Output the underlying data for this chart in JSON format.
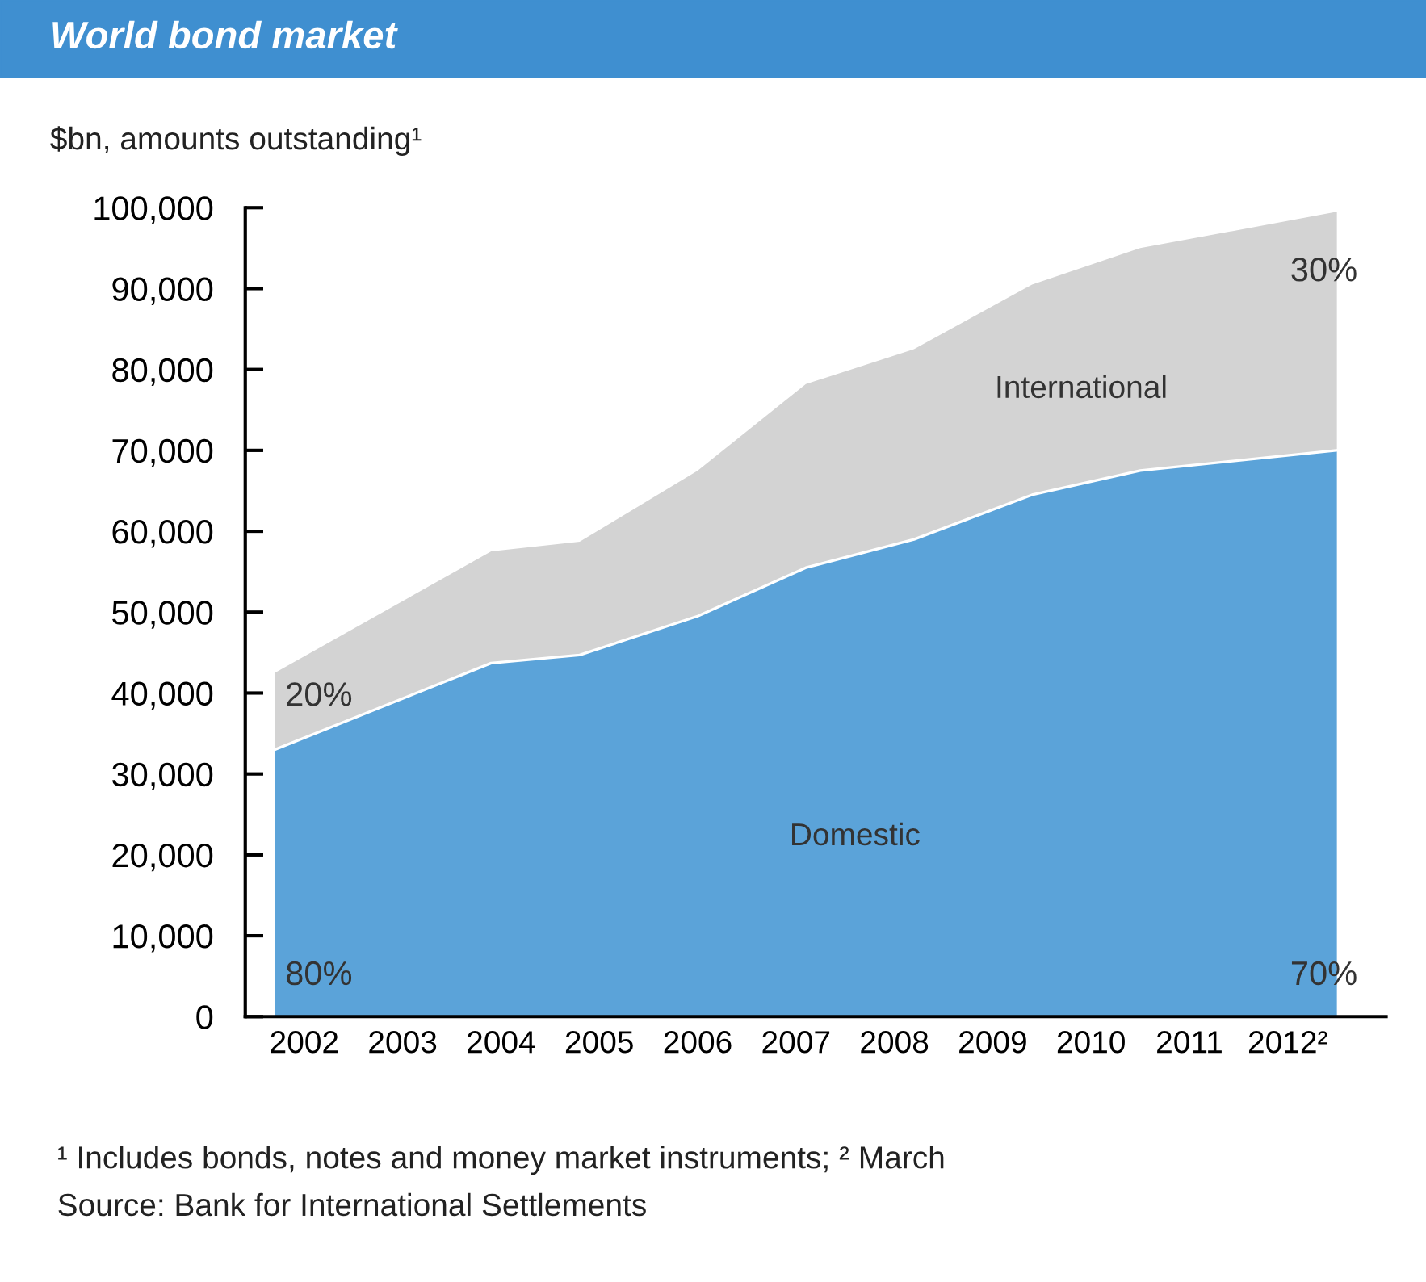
{
  "chart_data": {
    "type": "area",
    "stacked": true,
    "title": "World bond market",
    "subtitle": "$bn, amounts outstanding¹",
    "x": [
      2001.7,
      2003.9,
      2004.8,
      2006.0,
      2007.1,
      2008.2,
      2009.4,
      2010.5,
      2012.5
    ],
    "series": [
      {
        "name": "Domestic",
        "color": "#5ba3d9",
        "values": [
          33000,
          43700,
          44700,
          49500,
          55500,
          59000,
          64500,
          67500,
          70000
        ]
      },
      {
        "name": "International",
        "color": "#d3d3d3",
        "values": [
          9500,
          13800,
          14000,
          18000,
          22700,
          23500,
          26000,
          27500,
          29500
        ]
      }
    ],
    "xlim": [
      2001.4,
      2013.0
    ],
    "xticks": [
      2002,
      2003,
      2004,
      2005,
      2006,
      2007,
      2008,
      2009,
      2010,
      2011,
      {
        "value": 2012,
        "label": "2012²"
      }
    ],
    "ylim": [
      0,
      100000
    ],
    "yticks": [
      {
        "value": 0,
        "label": "0"
      },
      {
        "value": 10000,
        "label": "10,000"
      },
      {
        "value": 20000,
        "label": "20,000"
      },
      {
        "value": 30000,
        "label": "30,000"
      },
      {
        "value": 40000,
        "label": "40,000"
      },
      {
        "value": 50000,
        "label": "50,000"
      },
      {
        "value": 60000,
        "label": "60,000"
      },
      {
        "value": 70000,
        "label": "70,000"
      },
      {
        "value": 80000,
        "label": "80,000"
      },
      {
        "value": 90000,
        "label": "90,000"
      },
      {
        "value": 100000,
        "label": "100,000"
      }
    ],
    "grid": false,
    "legend": false,
    "annotations": [
      "20%",
      "80%",
      "30%",
      "70%",
      "¹ Includes bonds, notes and money market instruments; ² March",
      "Source: Bank for International Settlements"
    ]
  }
}
